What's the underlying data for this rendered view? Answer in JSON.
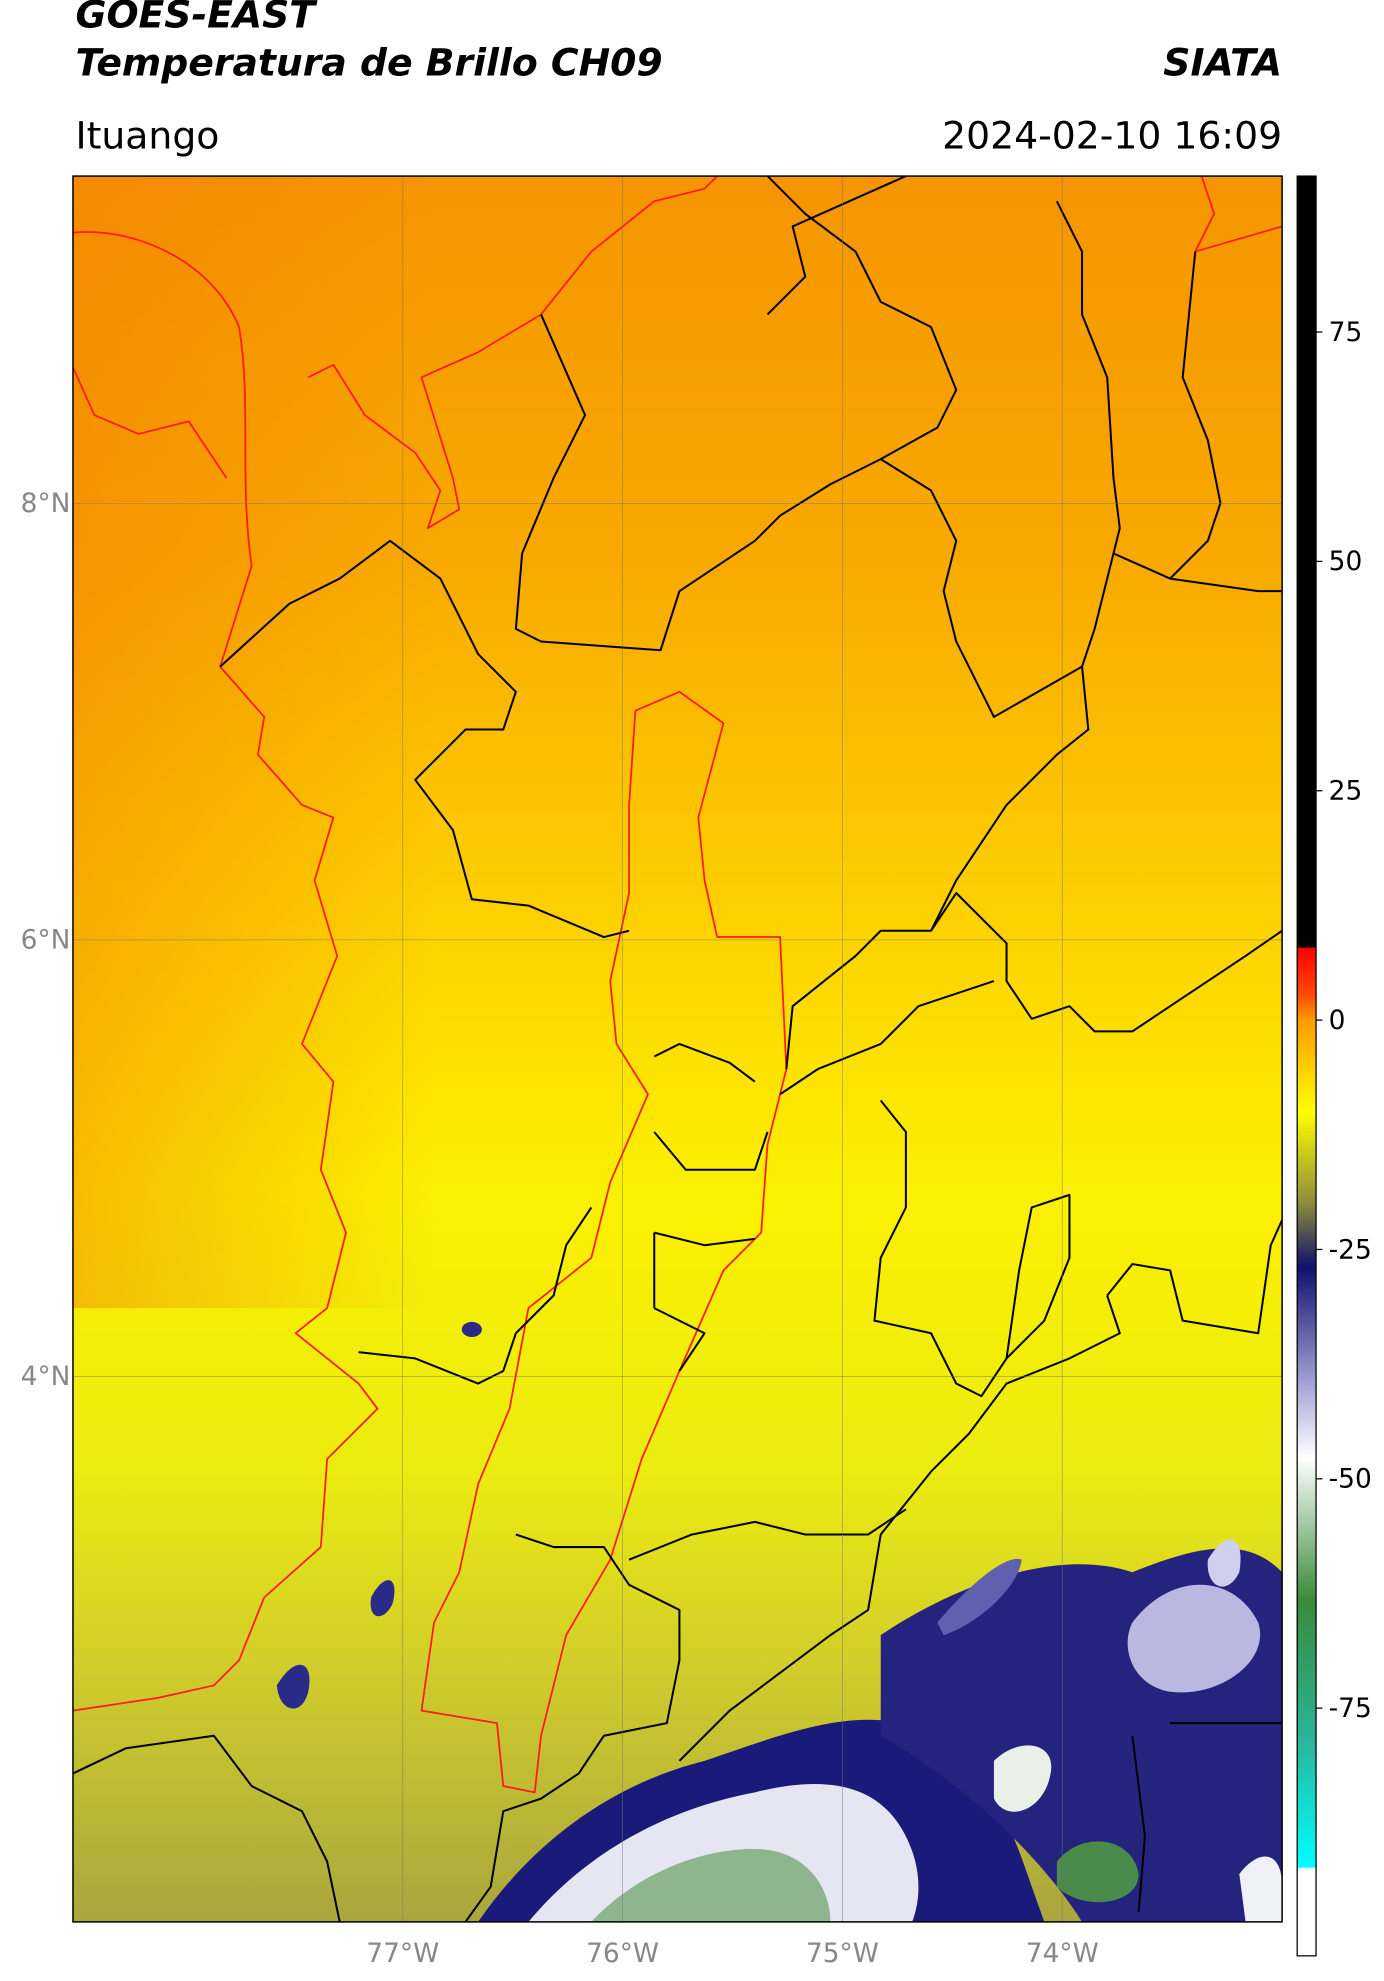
{
  "header": {
    "title": "GOES-EAST",
    "subtitle": "Temperatura de Brillo CH09",
    "brand": "SIATA",
    "location": "Ituango",
    "timestamp": "2024-02-10 16:09"
  },
  "map": {
    "lon_range": [
      -78.5,
      -73
    ],
    "lat_range": [
      1.5,
      9.5
    ],
    "lon_ticks": [
      {
        "value": -77,
        "label": "77°W"
      },
      {
        "value": -76,
        "label": "76°W"
      },
      {
        "value": -75,
        "label": "75°W"
      },
      {
        "value": -74,
        "label": "74°W"
      }
    ],
    "lat_ticks": [
      {
        "value": 8,
        "label": "8°N"
      },
      {
        "value": 6,
        "label": "6°N"
      },
      {
        "value": 4,
        "label": "4°N"
      }
    ]
  },
  "colorbar": {
    "range": [
      -102,
      92
    ],
    "ticks": [
      75,
      50,
      25,
      0,
      -25,
      -50,
      -75
    ]
  }
}
